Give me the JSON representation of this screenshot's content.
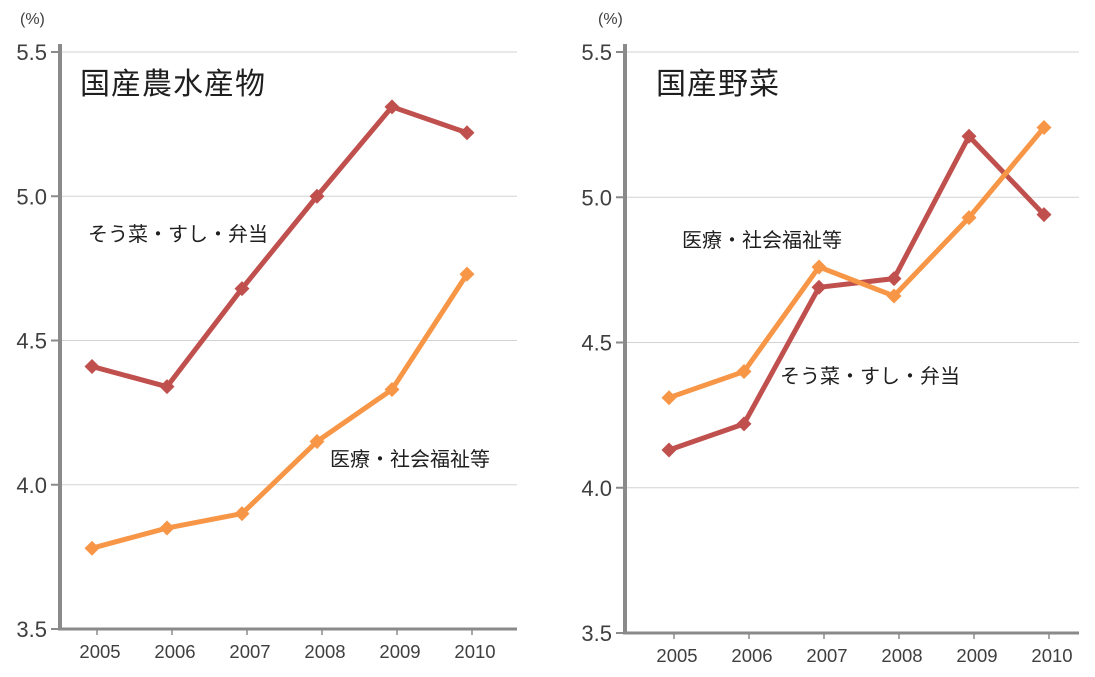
{
  "figure": {
    "description": "Two side-by-side line charts sharing percent axis 3.5 to 5.5",
    "background_color": "#ffffff"
  },
  "colors": {
    "series_souzai": "#C0504D",
    "series_iryo": "#F79646",
    "gridline": "#D3D3D3",
    "axis": "#8A8A8A",
    "tick_label": "#3F3F3F",
    "title_text": "#1F1F1F"
  },
  "chart_data": [
    {
      "type": "line",
      "title": "国産農水産物",
      "unit_label": "(%)",
      "xlabel": "",
      "ylabel": "",
      "categories": [
        "2005",
        "2006",
        "2007",
        "2008",
        "2009",
        "2010"
      ],
      "ylim": [
        3.5,
        5.5
      ],
      "yticks": [
        5.5,
        5.0,
        4.5,
        4.0,
        3.5
      ],
      "grid": true,
      "legend": "inline-labels",
      "series": [
        {
          "name": "そう菜・すし・弁当",
          "color": "#C0504D",
          "marker": "diamond",
          "values": [
            4.41,
            4.34,
            4.68,
            5.0,
            5.31,
            5.22
          ]
        },
        {
          "name": "医療・社会福祉等",
          "color": "#F79646",
          "marker": "diamond",
          "values": [
            3.78,
            3.85,
            3.9,
            4.15,
            4.33,
            4.73
          ]
        }
      ]
    },
    {
      "type": "line",
      "title": "国産野菜",
      "unit_label": "(%)",
      "xlabel": "",
      "ylabel": "",
      "categories": [
        "2005",
        "2006",
        "2007",
        "2008",
        "2009",
        "2010"
      ],
      "ylim": [
        3.5,
        5.5
      ],
      "yticks": [
        5.5,
        5.0,
        4.5,
        4.0,
        3.5
      ],
      "grid": true,
      "legend": "inline-labels",
      "series": [
        {
          "name": "そう菜・すし・弁当",
          "color": "#C0504D",
          "marker": "diamond",
          "values": [
            4.13,
            4.22,
            4.69,
            4.72,
            5.21,
            4.94
          ]
        },
        {
          "name": "医療・社会福祉等",
          "color": "#F79646",
          "marker": "diamond",
          "values": [
            4.31,
            4.4,
            4.76,
            4.66,
            4.93,
            5.24
          ]
        }
      ]
    }
  ]
}
